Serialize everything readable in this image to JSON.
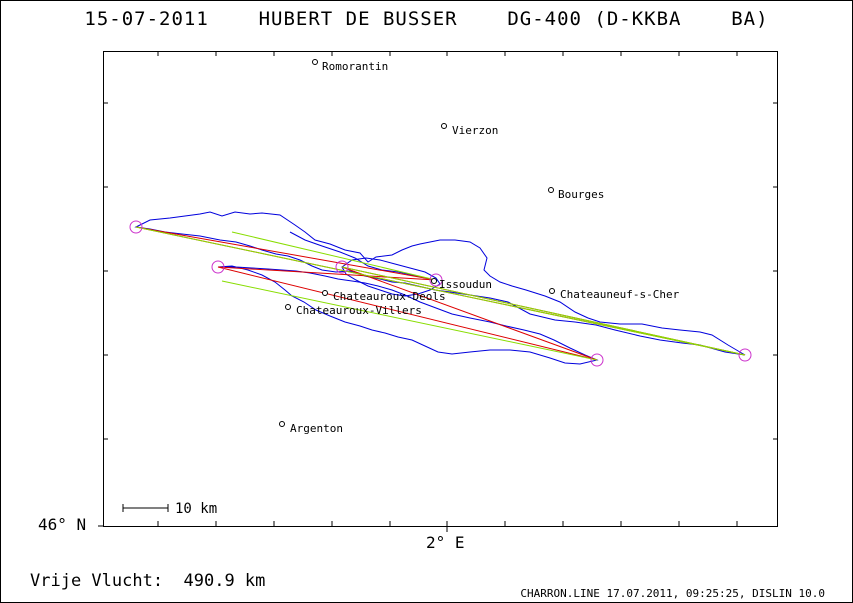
{
  "header": {
    "title": "15-07-2011    HUBERT DE BUSSER    DG-400 (D-KKBA    BA)"
  },
  "axes": {
    "lat_label": "46° N",
    "lon_label": "2° E"
  },
  "scale_bar": {
    "label": "10 km"
  },
  "cities": [
    {
      "name": "Romorantin"
    },
    {
      "name": "Vierzon"
    },
    {
      "name": "Bourges"
    },
    {
      "name": "Issoudun"
    },
    {
      "name": "Chateauneuf-s-Cher"
    },
    {
      "name": "Chateauroux-Deols"
    },
    {
      "name": "Chateauroux-Villers"
    },
    {
      "name": "Argenton"
    }
  ],
  "footer": {
    "distance": "Vrije Vlucht:  490.9 km",
    "info": "CHARRON.LINE 17.07.2011, 09:25:25, DISLIN 10.0"
  },
  "colors": {
    "track": "#0000dd",
    "task_red": "#dd0000",
    "task_green": "#88dd00",
    "turnpoint": "#cc33cc"
  }
}
